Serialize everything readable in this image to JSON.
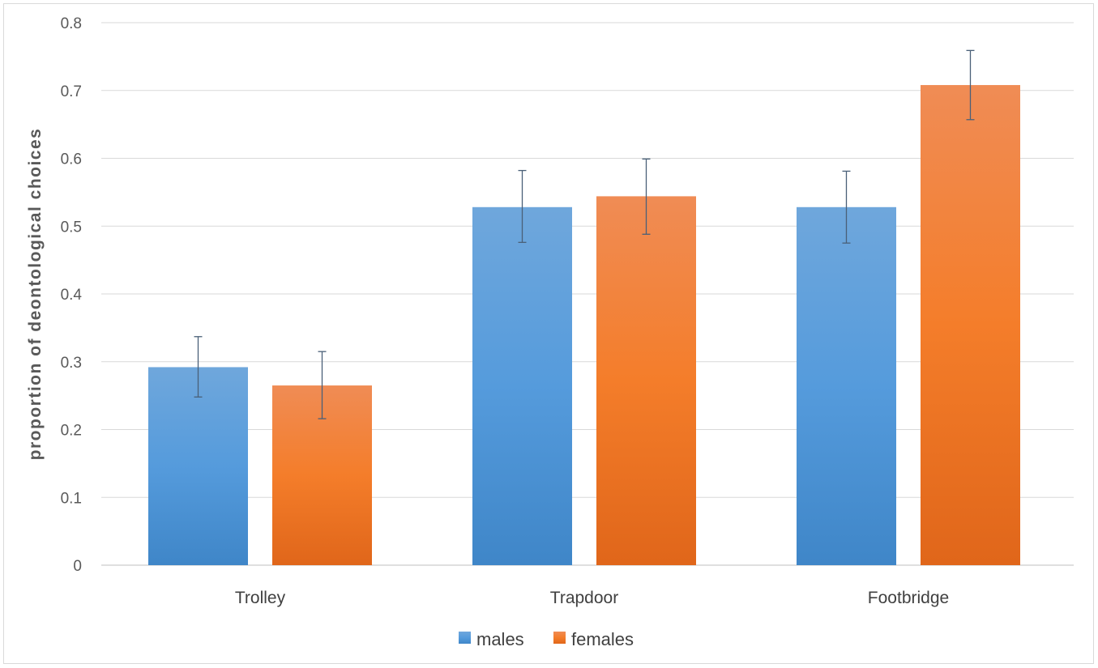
{
  "chart_data": {
    "type": "bar",
    "title": "",
    "xlabel": "",
    "ylabel": "proportion of deontological choices",
    "ylim": [
      0,
      0.8
    ],
    "yticks": [
      "0",
      "0.1",
      "0.2",
      "0.3",
      "0.4",
      "0.5",
      "0.6",
      "0.7",
      "0.8"
    ],
    "grid": true,
    "legend_position": "bottom",
    "categories": [
      "Trolley",
      "Trapdoor",
      "Footbridge"
    ],
    "series": [
      {
        "name": "males",
        "color": "#5B9BD5",
        "values": [
          0.292,
          0.528,
          0.528
        ],
        "error_low": [
          0.248,
          0.476,
          0.475
        ],
        "error_high": [
          0.337,
          0.582,
          0.581
        ]
      },
      {
        "name": "females",
        "color": "#ED7D31",
        "values": [
          0.265,
          0.544,
          0.708
        ],
        "error_low": [
          0.216,
          0.488,
          0.657
        ],
        "error_high": [
          0.315,
          0.599,
          0.759
        ]
      }
    ]
  }
}
